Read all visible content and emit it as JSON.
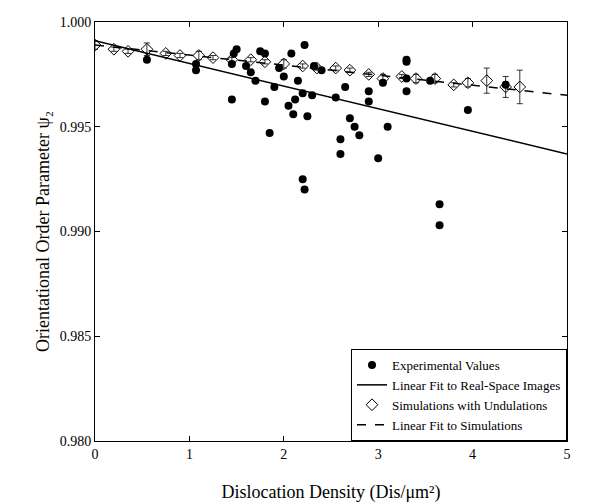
{
  "chart_data": {
    "type": "scatter",
    "x_label": "Dislocation Density (Dis/μm²)",
    "y_label": "Orientational Order Parameter ψ₂",
    "xlim": [
      0,
      5
    ],
    "xticks": [
      0,
      1,
      2,
      3,
      4,
      5
    ],
    "ylim": [
      0.98,
      1.0
    ],
    "yticks": [
      {
        "value": 0.98,
        "label": "0.980"
      },
      {
        "value": 0.985,
        "label": "0.985"
      },
      {
        "value": 0.99,
        "label": "0.990"
      },
      {
        "value": 0.995,
        "label": "0.995"
      },
      {
        "value": 1.0,
        "label": "1.000"
      }
    ],
    "grid": false,
    "legend": "bottom right",
    "series": [
      {
        "name": "Experimental Values",
        "type": "scatter",
        "marker": "circle",
        "color": "#000000",
        "x": [
          0.55,
          1.07,
          1.07,
          1.45,
          1.45,
          1.47,
          1.5,
          1.6,
          1.65,
          1.7,
          1.8,
          1.85,
          1.75,
          1.8,
          1.9,
          1.95,
          2.0,
          2.05,
          2.08,
          2.1,
          2.12,
          2.15,
          2.2,
          2.22,
          2.2,
          2.22,
          2.25,
          2.3,
          2.32,
          2.4,
          2.55,
          2.6,
          2.6,
          2.65,
          2.7,
          2.75,
          2.8,
          2.9,
          2.9,
          3.0,
          3.05,
          3.1,
          3.3,
          3.3,
          3.3,
          3.3,
          3.55,
          3.65,
          3.65,
          3.95,
          4.35
        ],
        "values": [
          0.9982,
          0.9977,
          0.998,
          0.9963,
          0.998,
          0.9985,
          0.9987,
          0.9979,
          0.9976,
          0.9972,
          0.9962,
          0.9947,
          0.9986,
          0.9985,
          0.9969,
          0.9978,
          0.9974,
          0.996,
          0.9985,
          0.9956,
          0.9963,
          0.9972,
          0.9966,
          0.9989,
          0.9925,
          0.992,
          0.9955,
          0.9965,
          0.9979,
          0.9977,
          0.9964,
          0.9937,
          0.9944,
          0.9969,
          0.9954,
          0.995,
          0.9946,
          0.9967,
          0.9962,
          0.9935,
          0.9971,
          0.995,
          0.9981,
          0.9982,
          0.9973,
          0.9967,
          0.9972,
          0.9913,
          0.9903,
          0.9958,
          0.997
        ]
      },
      {
        "name": "Linear Fit to Real-Space Images",
        "type": "line",
        "line_style": "solid",
        "color": "#000000",
        "x": [
          0,
          5
        ],
        "values": [
          0.9991,
          0.9937
        ]
      },
      {
        "name": "Simulations with Undulations",
        "type": "scatter",
        "marker": "diamond-open",
        "color": "#000000",
        "x": [
          0.0,
          0.2,
          0.35,
          0.55,
          0.75,
          0.9,
          1.1,
          1.25,
          1.45,
          1.65,
          1.8,
          2.0,
          2.2,
          2.35,
          2.55,
          2.7,
          2.9,
          3.05,
          3.25,
          3.4,
          3.6,
          3.8,
          3.95,
          4.15,
          4.35,
          4.5
        ],
        "values": [
          0.9989,
          0.9987,
          0.9986,
          0.9987,
          0.9985,
          0.9984,
          0.9984,
          0.9983,
          0.9982,
          0.9982,
          0.9981,
          0.998,
          0.9979,
          0.9978,
          0.9978,
          0.9977,
          0.9975,
          0.9973,
          0.9974,
          0.9973,
          0.9973,
          0.997,
          0.9971,
          0.9972,
          0.9969,
          0.9969
        ],
        "errors": [
          0.0002,
          0.0001,
          0.0001,
          0.0003,
          0.0001,
          0.0001,
          0.0002,
          0.0001,
          0.0001,
          0.0001,
          0.0001,
          0.0002,
          0.0001,
          0.0001,
          0.0001,
          0.0001,
          0.0001,
          0.0002,
          0.0001,
          0.0002,
          0.0002,
          0.0001,
          0.0002,
          0.0006,
          0.0005,
          0.0008
        ]
      },
      {
        "name": "Linear Fit to Simulations",
        "type": "line",
        "line_style": "dash",
        "color": "#000000",
        "x": [
          0,
          5
        ],
        "values": [
          0.9989,
          0.9965
        ]
      }
    ]
  }
}
